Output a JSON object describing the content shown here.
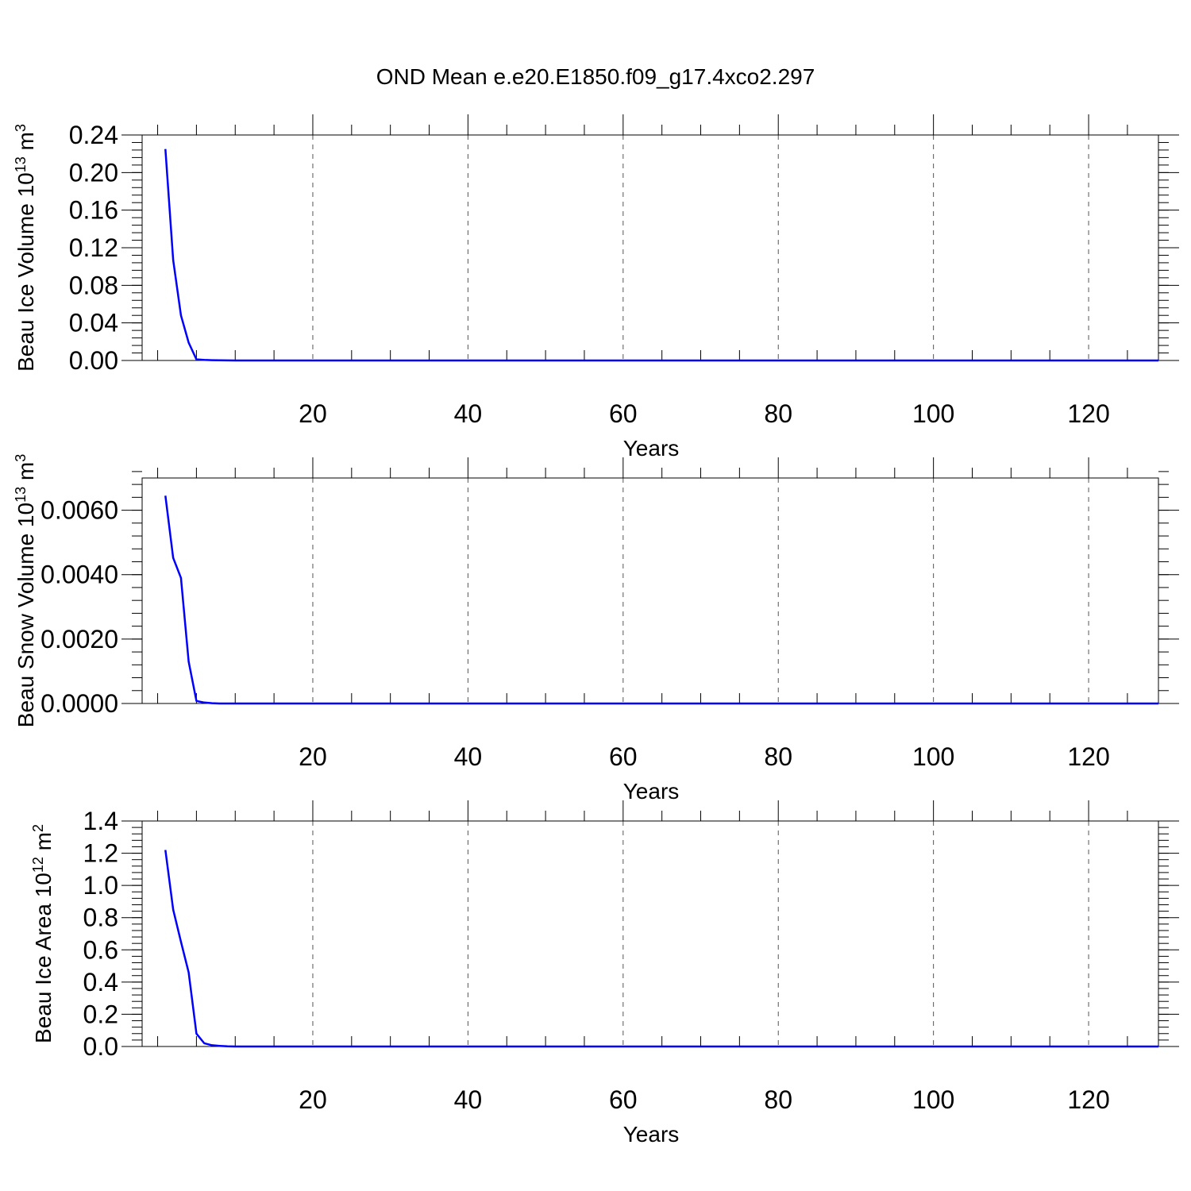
{
  "title": "OND Mean e.e20.E1850.f09_g17.4xco2.297",
  "colors": {
    "series": "#0000ff",
    "axes": "#000000"
  },
  "chart_data": [
    {
      "type": "line",
      "ylabel_prefix": "Beau Ice Volume 10",
      "ylabel_exp": "13",
      "ylabel_unit": " m",
      "ylabel_unit_exp": "3",
      "xlabel": "Years",
      "xlim": [
        -2,
        129
      ],
      "ylim": [
        0,
        0.24
      ],
      "xticks": [
        20,
        40,
        60,
        80,
        100,
        120
      ],
      "xtick_labels": [
        "20",
        "40",
        "60",
        "80",
        "100",
        "120"
      ],
      "yticks": [
        0,
        0.04,
        0.08,
        0.12,
        0.16,
        0.2,
        0.24
      ],
      "ytick_labels": [
        "0.00",
        "0.04",
        "0.08",
        "0.12",
        "0.16",
        "0.20",
        "0.24"
      ],
      "yminor_step": 0.008,
      "grid": "x-dashed",
      "series": [
        {
          "x": [
            1,
            2,
            3,
            4,
            5,
            6,
            7,
            8,
            9,
            10,
            129
          ],
          "y": [
            0.225,
            0.107,
            0.048,
            0.019,
            0.0012,
            0.0006,
            0.0003,
            0.0002,
            0.0001,
            0.0,
            0.0
          ]
        }
      ]
    },
    {
      "type": "line",
      "ylabel_prefix": "Beau Snow Volume 10",
      "ylabel_exp": "13",
      "ylabel_unit": " m",
      "ylabel_unit_exp": "3",
      "xlabel": "Years",
      "xlim": [
        -2,
        129
      ],
      "ylim": [
        0,
        0.007
      ],
      "xticks": [
        20,
        40,
        60,
        80,
        100,
        120
      ],
      "xtick_labels": [
        "20",
        "40",
        "60",
        "80",
        "100",
        "120"
      ],
      "yticks": [
        0,
        0.002,
        0.004,
        0.006
      ],
      "ytick_labels": [
        "0.0000",
        "0.0020",
        "0.0040",
        "0.0060"
      ],
      "yminor_step": 0.0004,
      "grid": "x-dashed",
      "series": [
        {
          "x": [
            1,
            2,
            3,
            4,
            5,
            6,
            7,
            8,
            9,
            10,
            129
          ],
          "y": [
            0.00645,
            0.00452,
            0.0039,
            0.0013,
            8e-05,
            3e-05,
            1e-05,
            0.0,
            0.0,
            0.0,
            0.0
          ]
        }
      ]
    },
    {
      "type": "line",
      "ylabel_prefix": "Beau Ice Area 10",
      "ylabel_exp": "12",
      "ylabel_unit": " m",
      "ylabel_unit_exp": "2",
      "xlabel": "Years",
      "xlim": [
        -2,
        129
      ],
      "ylim": [
        0,
        1.4
      ],
      "xticks": [
        20,
        40,
        60,
        80,
        100,
        120
      ],
      "xtick_labels": [
        "20",
        "40",
        "60",
        "80",
        "100",
        "120"
      ],
      "yticks": [
        0,
        0.2,
        0.4,
        0.6,
        0.8,
        1.0,
        1.2,
        1.4
      ],
      "ytick_labels": [
        "0.0",
        "0.2",
        "0.4",
        "0.6",
        "0.8",
        "1.0",
        "1.2",
        "1.4"
      ],
      "yminor_step": 0.04,
      "grid": "x-dashed",
      "series": [
        {
          "x": [
            1,
            2,
            3,
            4,
            5,
            6,
            7,
            8,
            9,
            10,
            129
          ],
          "y": [
            1.22,
            0.85,
            0.65,
            0.46,
            0.08,
            0.02,
            0.008,
            0.004,
            0.001,
            0.0,
            0.0
          ]
        }
      ]
    }
  ]
}
